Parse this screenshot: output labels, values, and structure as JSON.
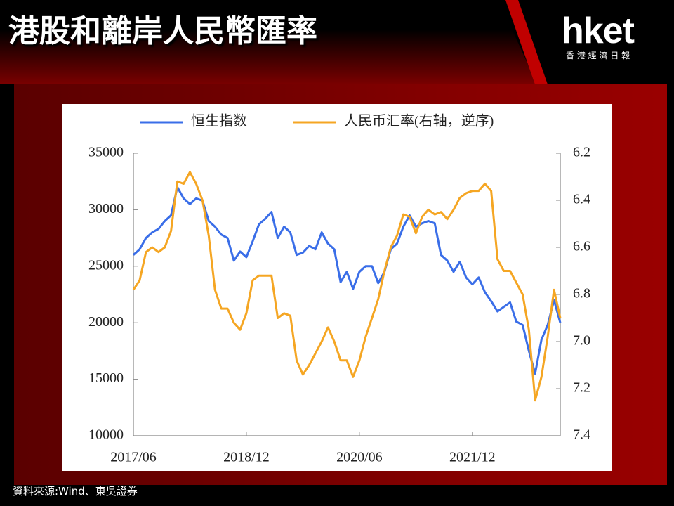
{
  "header": {
    "title": "港股和離岸人民幣匯率",
    "logo": "hket",
    "logo_sub": "香 港 經 濟 日 報"
  },
  "source": "資料來源:Wind、東吳證券",
  "chart_data": {
    "type": "line",
    "x": [
      "2017/06",
      "2017/07",
      "2017/08",
      "2017/09",
      "2017/10",
      "2017/11",
      "2017/12",
      "2018/01",
      "2018/02",
      "2018/03",
      "2018/04",
      "2018/05",
      "2018/06",
      "2018/07",
      "2018/08",
      "2018/09",
      "2018/10",
      "2018/11",
      "2018/12",
      "2019/01",
      "2019/02",
      "2019/03",
      "2019/04",
      "2019/05",
      "2019/06",
      "2019/07",
      "2019/08",
      "2019/09",
      "2019/10",
      "2019/11",
      "2019/12",
      "2020/01",
      "2020/02",
      "2020/03",
      "2020/04",
      "2020/05",
      "2020/06",
      "2020/07",
      "2020/08",
      "2020/09",
      "2020/10",
      "2020/11",
      "2020/12",
      "2021/01",
      "2021/02",
      "2021/03",
      "2021/04",
      "2021/05",
      "2021/06",
      "2021/07",
      "2021/08",
      "2021/09",
      "2021/10",
      "2021/11",
      "2021/12",
      "2022/01",
      "2022/02",
      "2022/03",
      "2022/04",
      "2022/05",
      "2022/06",
      "2022/07",
      "2022/08",
      "2022/09",
      "2022/10",
      "2022/11",
      "2022/12",
      "2023/01",
      "2023/02"
    ],
    "xticks": [
      "2017/06",
      "2018/12",
      "2020/06",
      "2021/12"
    ],
    "series": [
      {
        "name": "恒生指数",
        "color": "#3a6ee8",
        "values": [
          26000,
          26500,
          27500,
          28000,
          28300,
          29000,
          29500,
          32000,
          31000,
          30500,
          31000,
          30800,
          29000,
          28500,
          27800,
          27500,
          25500,
          26300,
          25800,
          27200,
          28700,
          29200,
          29800,
          27500,
          28500,
          28000,
          26000,
          26200,
          26800,
          26500,
          28000,
          27000,
          26500,
          23600,
          24500,
          23000,
          24500,
          25000,
          25000,
          23500,
          24500,
          26500,
          27000,
          28500,
          29500,
          28500,
          28800,
          29000,
          28800,
          26000,
          25500,
          24500,
          25400,
          24000,
          23400,
          24000,
          22700,
          21900,
          21000,
          21400,
          21800,
          20100,
          19800,
          17500,
          15500,
          18500,
          19800,
          22000,
          20000
        ]
      },
      {
        "name": "人民币汇率(右轴，逆序)",
        "color": "#f5a623",
        "axis": "y2",
        "values": [
          6.78,
          6.74,
          6.62,
          6.6,
          6.62,
          6.6,
          6.53,
          6.32,
          6.33,
          6.28,
          6.33,
          6.4,
          6.55,
          6.78,
          6.86,
          6.86,
          6.92,
          6.95,
          6.88,
          6.74,
          6.72,
          6.72,
          6.72,
          6.9,
          6.88,
          6.89,
          7.08,
          7.14,
          7.1,
          7.05,
          7.0,
          6.94,
          7.0,
          7.08,
          7.08,
          7.15,
          7.08,
          6.98,
          6.9,
          6.82,
          6.7,
          6.6,
          6.55,
          6.46,
          6.47,
          6.54,
          6.47,
          6.44,
          6.46,
          6.45,
          6.48,
          6.44,
          6.39,
          6.37,
          6.36,
          6.36,
          6.33,
          6.36,
          6.65,
          6.7,
          6.7,
          6.75,
          6.8,
          6.95,
          7.25,
          7.15,
          6.98,
          6.78,
          6.9
        ]
      }
    ],
    "ylim": [
      10000,
      35000
    ],
    "yticks": [
      10000,
      15000,
      20000,
      25000,
      30000,
      35000
    ],
    "y2lim": [
      7.4,
      6.2
    ],
    "y2ticks": [
      6.2,
      6.4,
      6.6,
      6.8,
      {
        "value": 7,
        "label": "7.0"
      },
      7.2,
      7.4
    ]
  }
}
